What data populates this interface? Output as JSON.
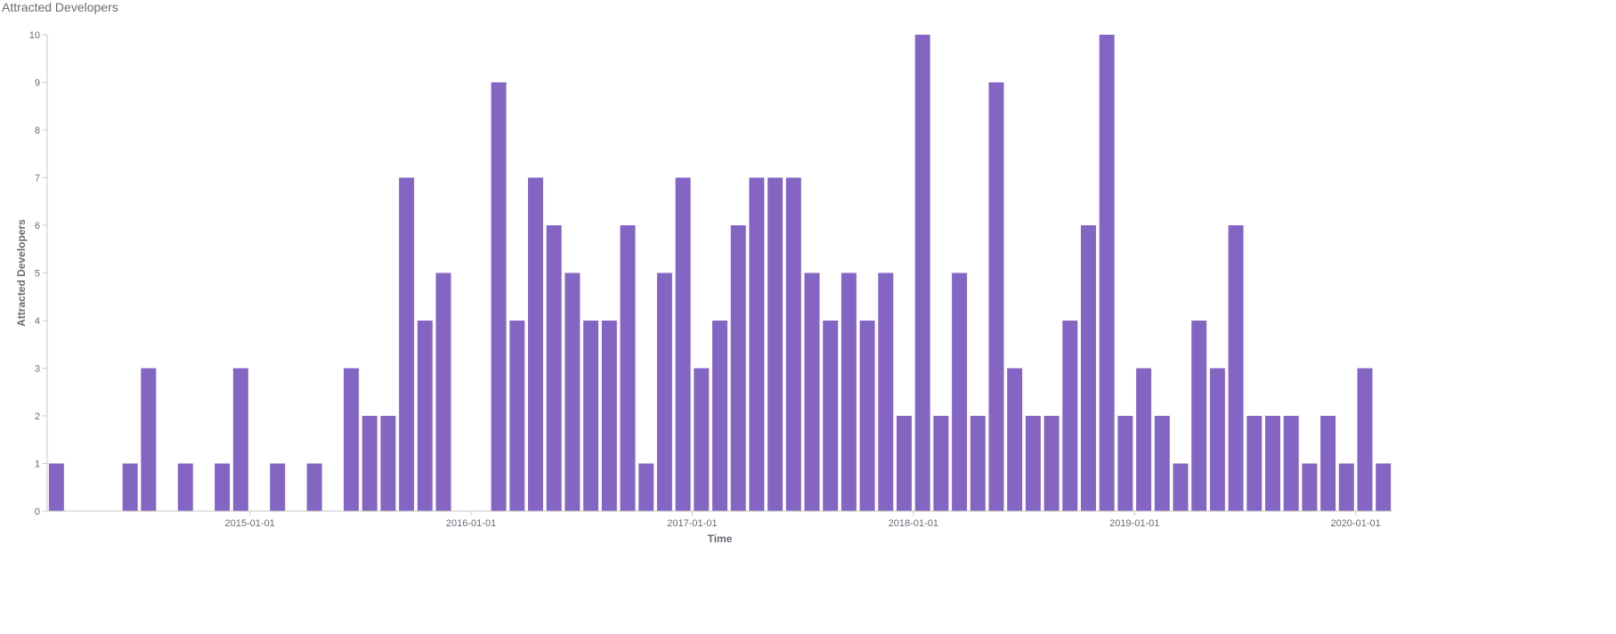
{
  "chart_data": {
    "type": "bar",
    "title": "Attracted Developers",
    "xlabel": "Time",
    "ylabel": "Attracted Developers",
    "ylim": [
      0,
      10
    ],
    "y_ticks": [
      "0",
      "1",
      "2",
      "3",
      "4",
      "5",
      "6",
      "7",
      "8",
      "9",
      "10"
    ],
    "x_ticks": [
      {
        "label": "2015-01-01",
        "date": "2015-01-01"
      },
      {
        "label": "2016-01-01",
        "date": "2016-01-01"
      },
      {
        "label": "2017-01-01",
        "date": "2017-01-01"
      },
      {
        "label": "2018-01-01",
        "date": "2018-01-01"
      },
      {
        "label": "2019-01-01",
        "date": "2019-01-01"
      },
      {
        "label": "2020-01-01",
        "date": "2020-01-01"
      }
    ],
    "grid": false,
    "color": "#8565c4",
    "x": [
      "2014-02",
      "2014-03",
      "2014-04",
      "2014-05",
      "2014-06",
      "2014-07",
      "2014-08",
      "2014-09",
      "2014-10",
      "2014-11",
      "2014-12",
      "2015-01",
      "2015-02",
      "2015-03",
      "2015-04",
      "2015-05",
      "2015-06",
      "2015-07",
      "2015-08",
      "2015-09",
      "2015-10",
      "2015-11",
      "2015-12",
      "2016-01",
      "2016-02",
      "2016-03",
      "2016-04",
      "2016-05",
      "2016-06",
      "2016-07",
      "2016-08",
      "2016-09",
      "2016-10",
      "2016-11",
      "2016-12",
      "2017-01",
      "2017-02",
      "2017-03",
      "2017-04",
      "2017-05",
      "2017-06",
      "2017-07",
      "2017-08",
      "2017-09",
      "2017-10",
      "2017-11",
      "2017-12",
      "2018-01",
      "2018-02",
      "2018-03",
      "2018-04",
      "2018-05",
      "2018-06",
      "2018-07",
      "2018-08",
      "2018-09",
      "2018-10",
      "2018-11",
      "2018-12",
      "2019-01",
      "2019-02",
      "2019-03",
      "2019-04",
      "2019-05",
      "2019-06",
      "2019-07",
      "2019-08",
      "2019-09",
      "2019-10",
      "2019-11",
      "2019-12",
      "2020-01",
      "2020-02"
    ],
    "values": [
      1,
      0,
      0,
      0,
      1,
      3,
      0,
      1,
      0,
      1,
      3,
      0,
      1,
      0,
      1,
      0,
      3,
      2,
      2,
      7,
      4,
      5,
      0,
      0,
      9,
      4,
      7,
      6,
      5,
      4,
      4,
      6,
      1,
      5,
      7,
      3,
      4,
      6,
      7,
      7,
      7,
      5,
      4,
      5,
      4,
      5,
      2,
      10,
      2,
      5,
      2,
      9,
      3,
      2,
      2,
      4,
      6,
      10,
      2,
      3,
      2,
      1,
      4,
      3,
      6,
      2,
      2,
      2,
      1,
      2,
      1,
      3,
      1
    ]
  }
}
